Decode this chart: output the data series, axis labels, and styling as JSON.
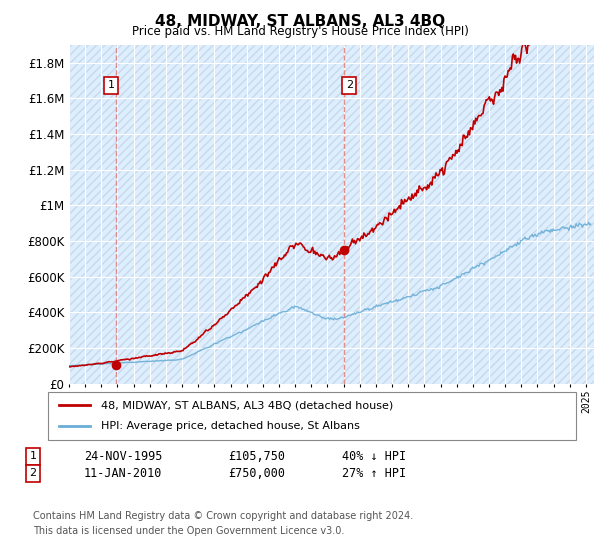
{
  "title": "48, MIDWAY, ST ALBANS, AL3 4BQ",
  "subtitle": "Price paid vs. HM Land Registry's House Price Index (HPI)",
  "ytick_values": [
    0,
    200000,
    400000,
    600000,
    800000,
    1000000,
    1200000,
    1400000,
    1600000,
    1800000
  ],
  "ylim": [
    0,
    1900000
  ],
  "xlim_start": 1993,
  "xlim_end": 2025.5,
  "hpi_color": "#6aaed6",
  "price_color": "#c00000",
  "point_color": "#c00000",
  "vline_color": "#e08080",
  "annotation_box_color": "#c00000",
  "transaction1_date": "24-NOV-1995",
  "transaction1_price": 105750,
  "transaction1_hpi_pct": "40% ↓ HPI",
  "transaction1_x": 1995.9,
  "transaction2_date": "11-JAN-2010",
  "transaction2_price": 750000,
  "transaction2_hpi_pct": "27% ↑ HPI",
  "transaction2_x": 2010.05,
  "legend_label1": "48, MIDWAY, ST ALBANS, AL3 4BQ (detached house)",
  "legend_label2": "HPI: Average price, detached house, St Albans",
  "footer": "Contains HM Land Registry data © Crown copyright and database right 2024.\nThis data is licensed under the Open Government Licence v3.0.",
  "background_color": "#ffffff",
  "plot_bg_color": "#ddeeff",
  "grid_color": "#ffffff",
  "hatch_color": "#c8d8e8"
}
